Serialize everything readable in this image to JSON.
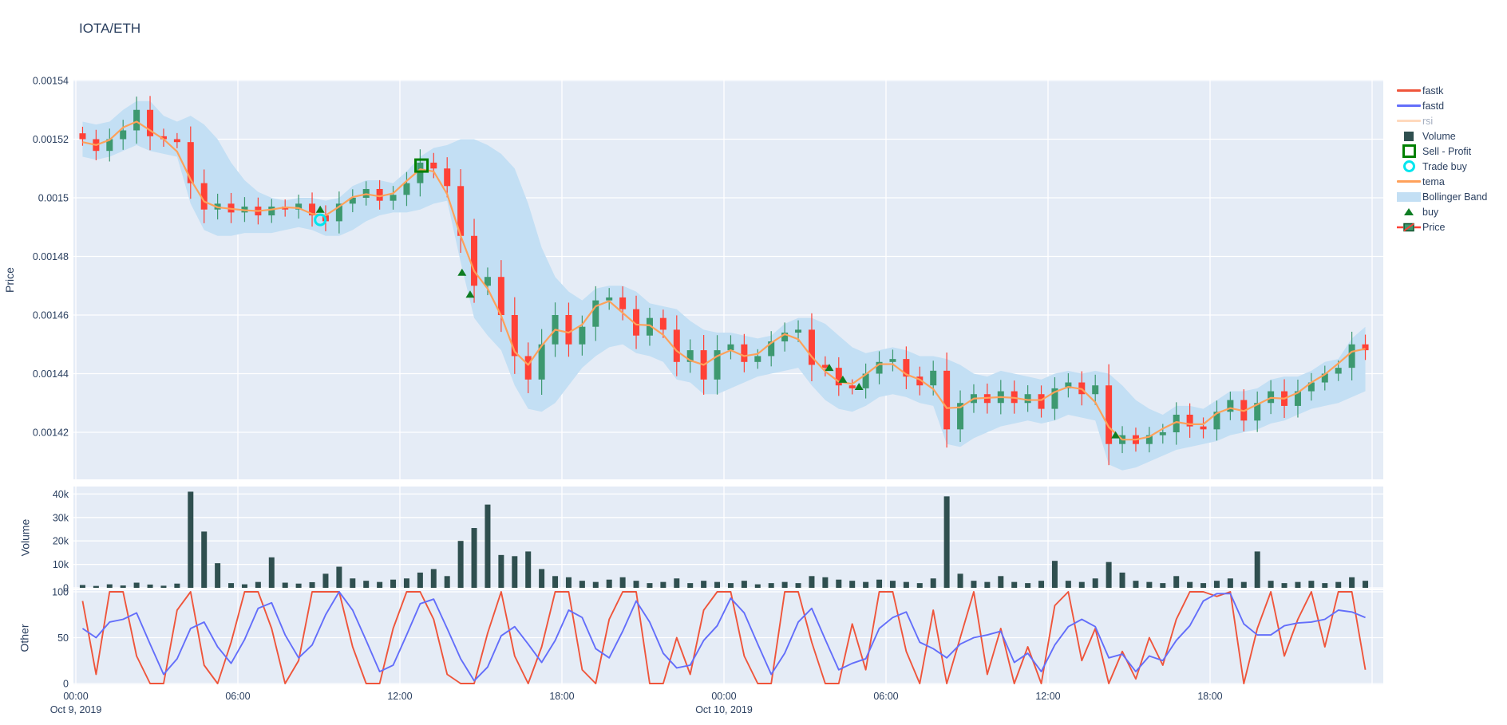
{
  "title": "IOTA/ETH",
  "colors": {
    "background_panel": "#E5ECF6",
    "grid": "#ffffff",
    "text": "#2a3f5f",
    "candle_up": "#3D9970",
    "candle_down": "#FF4136",
    "tema": "#FFA15A",
    "bollinger_fill": "#C3DFF4",
    "volume_bar": "#2F4F4F",
    "fastk": "#EF553B",
    "fastd": "#636EFA",
    "rsi": "#FFA15A",
    "buy_marker": "#0e7d23",
    "sell_marker": "#008000",
    "trade_buy_marker": "#00E5EE"
  },
  "legend": {
    "items": [
      {
        "label": "fastk",
        "type": "line",
        "color": "#EF553B",
        "faded": false
      },
      {
        "label": "fastd",
        "type": "line",
        "color": "#636EFA",
        "faded": false
      },
      {
        "label": "rsi",
        "type": "line",
        "color": "#FFA15A",
        "faded": true
      },
      {
        "label": "Volume",
        "type": "square-filled",
        "color": "#2F4F4F",
        "faded": false
      },
      {
        "label": "Sell - Profit",
        "type": "square-open",
        "color": "#008000",
        "faded": false
      },
      {
        "label": "Trade buy",
        "type": "circle-open",
        "color": "#00E5EE",
        "faded": false
      },
      {
        "label": "tema",
        "type": "line",
        "color": "#FFA15A",
        "faded": false
      },
      {
        "label": "Bollinger Band",
        "type": "band",
        "color": "#C3DFF4",
        "faded": false
      },
      {
        "label": "buy",
        "type": "triangle-up",
        "color": "#0e7d23",
        "faded": false
      },
      {
        "label": "Price",
        "type": "candlestick",
        "color": "#3D9970",
        "faded": false
      }
    ]
  },
  "axes": {
    "price": {
      "title": "Price",
      "ticks": [
        "0.00154",
        "0.00152",
        "0.0015",
        "0.00148",
        "0.00146",
        "0.00144",
        "0.00142"
      ]
    },
    "volume": {
      "title": "Volume",
      "ticks": [
        "40k",
        "30k",
        "20k",
        "10k",
        "0"
      ]
    },
    "other": {
      "title": "Other",
      "ticks": [
        "100",
        "50",
        "0"
      ]
    },
    "x": {
      "ticks": [
        "00:00",
        "06:00",
        "12:00",
        "18:00",
        "00:00",
        "06:00",
        "12:00",
        "18:00"
      ],
      "tick_hours": [
        0,
        6,
        12,
        18,
        24,
        30,
        36,
        42
      ],
      "date_labels": [
        {
          "text": "Oct 9, 2019",
          "hour": 0
        },
        {
          "text": "Oct 10, 2019",
          "hour": 24
        }
      ]
    }
  },
  "chart_data": [
    {
      "panel": "price",
      "type": "candlestick",
      "pair": "IOTA/ETH",
      "interval_minutes": 30,
      "start": "2019-10-09 00:00",
      "price_unit_scale": 1e-05,
      "ylim": [
        0.001404,
        0.0015403
      ],
      "close": [
        152.0,
        151.6,
        152.0,
        152.3,
        153.0,
        152.1,
        152.0,
        151.9,
        150.5,
        149.6,
        149.8,
        149.5,
        149.7,
        149.4,
        149.7,
        149.6,
        149.8,
        149.4,
        149.2,
        149.8,
        150.0,
        150.3,
        149.9,
        150.1,
        150.5,
        151.2,
        151.0,
        150.4,
        148.7,
        147.0,
        147.3,
        146.0,
        144.6,
        143.8,
        145.0,
        146.0,
        145.0,
        145.6,
        146.5,
        146.6,
        146.2,
        145.3,
        145.9,
        145.5,
        144.4,
        144.8,
        143.8,
        144.8,
        145.0,
        144.4,
        144.6,
        145.1,
        145.4,
        145.5,
        144.3,
        144.2,
        143.6,
        143.5,
        144.0,
        144.4,
        144.5,
        143.9,
        143.6,
        144.1,
        142.1,
        143.0,
        143.3,
        143.0,
        143.4,
        143.0,
        143.3,
        142.8,
        143.5,
        143.7,
        143.3,
        143.6,
        141.6,
        141.9,
        141.6,
        141.9,
        142.0,
        142.6,
        142.2,
        142.1,
        142.7,
        143.1,
        142.4,
        143.0,
        143.4,
        142.9,
        143.4,
        143.7,
        144.0,
        144.2,
        145.0,
        144.8
      ],
      "open_first": 152.2,
      "bb_upper": [
        152.6,
        152.5,
        152.6,
        153.0,
        153.3,
        153.3,
        152.8,
        152.6,
        152.8,
        152.5,
        152.0,
        151.2,
        150.6,
        150.2,
        150.0,
        149.9,
        150.0,
        150.0,
        149.9,
        150.0,
        150.4,
        150.6,
        150.6,
        150.5,
        150.9,
        151.4,
        151.7,
        151.8,
        152.0,
        152.0,
        151.8,
        151.5,
        151.0,
        149.8,
        148.3,
        147.3,
        146.8,
        146.5,
        146.9,
        147.0,
        147.0,
        146.8,
        146.4,
        146.3,
        146.2,
        145.8,
        145.5,
        145.4,
        145.4,
        145.3,
        145.2,
        145.3,
        145.7,
        145.9,
        145.9,
        145.7,
        145.3,
        144.9,
        144.7,
        144.8,
        144.9,
        144.8,
        144.6,
        144.6,
        144.5,
        144.3,
        144.0,
        143.9,
        144.1,
        144.0,
        143.9,
        143.8,
        144.0,
        144.1,
        144.0,
        144.1,
        144.0,
        143.6,
        143.1,
        142.8,
        142.6,
        142.9,
        142.9,
        142.8,
        143.1,
        143.4,
        143.4,
        143.5,
        143.8,
        143.9,
        143.9,
        144.1,
        144.4,
        144.5,
        145.2,
        145.6
      ],
      "bb_lower": [
        151.4,
        151.3,
        151.4,
        151.6,
        151.8,
        151.6,
        151.5,
        151.4,
        149.8,
        148.9,
        148.7,
        148.7,
        148.8,
        148.8,
        148.8,
        148.9,
        149.0,
        148.9,
        148.7,
        148.7,
        148.9,
        149.2,
        149.4,
        149.5,
        149.5,
        149.6,
        149.8,
        149.9,
        147.8,
        145.9,
        145.3,
        144.8,
        143.6,
        142.8,
        142.7,
        143.0,
        143.6,
        144.2,
        144.6,
        144.9,
        145.0,
        144.7,
        144.6,
        144.4,
        143.8,
        143.7,
        143.3,
        143.3,
        143.5,
        143.7,
        143.9,
        144.0,
        144.1,
        144.2,
        143.6,
        143.1,
        142.8,
        142.7,
        142.9,
        143.2,
        143.3,
        143.2,
        143.0,
        142.9,
        141.6,
        141.5,
        141.8,
        142.0,
        142.2,
        142.3,
        142.4,
        142.3,
        142.4,
        142.6,
        142.5,
        142.4,
        140.9,
        140.7,
        140.8,
        141.0,
        141.2,
        141.4,
        141.5,
        141.6,
        141.7,
        141.9,
        142.0,
        142.1,
        142.3,
        142.4,
        142.6,
        142.8,
        142.9,
        143.0,
        143.2,
        143.4
      ],
      "tema_note": "tema line closely tracks close values (smoothed)",
      "markers": {
        "buy_signals": [
          {
            "hour": 9.05,
            "price": 149.6
          },
          {
            "hour": 14.3,
            "price": 147.45
          },
          {
            "hour": 14.6,
            "price": 146.7
          },
          {
            "hour": 27.9,
            "price": 144.2
          },
          {
            "hour": 28.4,
            "price": 143.8
          },
          {
            "hour": 29.0,
            "price": 143.55
          },
          {
            "hour": 38.5,
            "price": 141.9
          }
        ],
        "trade_buy": [
          {
            "hour": 9.05,
            "price": 149.25
          }
        ],
        "sell_profit": [
          {
            "hour": 12.8,
            "price": 151.1
          }
        ]
      }
    },
    {
      "panel": "volume",
      "type": "bar",
      "unit": "k",
      "ylim": [
        0,
        43200
      ],
      "values": [
        1.2,
        0.8,
        1.5,
        1.0,
        2.2,
        1.4,
        0.9,
        1.8,
        41,
        24,
        10.5,
        2.0,
        1.5,
        2.5,
        13,
        2.2,
        1.8,
        2.4,
        6,
        9,
        4,
        3,
        2.5,
        3.5,
        4,
        6.5,
        8,
        5,
        20,
        25.5,
        35.5,
        14,
        13.5,
        15.5,
        8,
        5,
        4.5,
        3,
        2.5,
        3.5,
        4.5,
        3,
        2,
        2.5,
        4,
        2,
        3,
        2.5,
        2,
        3,
        1.5,
        2,
        2.5,
        2,
        5,
        4.5,
        3.5,
        3,
        2.5,
        3.5,
        3,
        2.5,
        2,
        4,
        39,
        6,
        3,
        2.5,
        5,
        2.5,
        2,
        3,
        11.5,
        3,
        2.5,
        4,
        11,
        6.5,
        3,
        2.5,
        2,
        5,
        2.5,
        2,
        3,
        4,
        2.5,
        15.5,
        3,
        2,
        2.5,
        3,
        2,
        2.5,
        4.5,
        3
      ]
    },
    {
      "panel": "other",
      "type": "line",
      "ylim": [
        0,
        100
      ],
      "series": [
        {
          "name": "fastk",
          "color": "#EF553B",
          "values": [
            90,
            10,
            100,
            100,
            30,
            0,
            0,
            80,
            100,
            20,
            0,
            45,
            100,
            100,
            60,
            0,
            25,
            100,
            100,
            100,
            40,
            0,
            0,
            60,
            100,
            100,
            70,
            10,
            0,
            0,
            55,
            100,
            30,
            0,
            40,
            100,
            100,
            15,
            0,
            70,
            100,
            100,
            0,
            0,
            50,
            10,
            80,
            100,
            100,
            30,
            0,
            0,
            100,
            100,
            45,
            0,
            0,
            65,
            15,
            100,
            100,
            35,
            0,
            80,
            0,
            50,
            100,
            10,
            60,
            0,
            40,
            0,
            85,
            100,
            25,
            60,
            0,
            35,
            5,
            50,
            20,
            70,
            100,
            100,
            95,
            100,
            0,
            60,
            100,
            30,
            70,
            100,
            40,
            100,
            100,
            15
          ]
        },
        {
          "name": "fastd",
          "color": "#636EFA",
          "values": [
            60,
            50,
            67,
            70,
            77,
            43,
            10,
            27,
            60,
            67,
            40,
            22,
            48,
            82,
            88,
            53,
            28,
            42,
            75,
            100,
            80,
            47,
            13,
            20,
            53,
            87,
            92,
            60,
            27,
            3,
            18,
            52,
            62,
            43,
            23,
            47,
            80,
            72,
            38,
            28,
            57,
            90,
            67,
            33,
            17,
            20,
            47,
            63,
            93,
            77,
            43,
            10,
            33,
            67,
            82,
            48,
            15,
            22,
            27,
            60,
            72,
            78,
            45,
            38,
            28,
            43,
            50,
            53,
            57,
            23,
            33,
            13,
            42,
            62,
            70,
            62,
            28,
            32,
            13,
            30,
            25,
            47,
            63,
            90,
            98,
            98,
            65,
            53,
            53,
            63,
            66,
            67,
            70,
            80,
            78,
            72
          ]
        },
        {
          "name": "rsi",
          "color": "#FFA15A",
          "hidden": true,
          "values": []
        }
      ]
    }
  ]
}
